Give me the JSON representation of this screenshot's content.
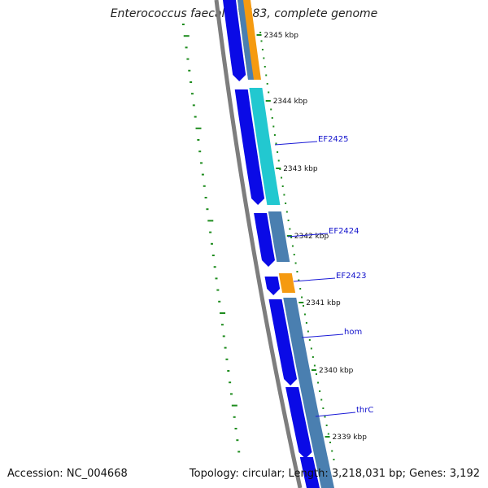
{
  "title": "Enterococcus faecalis V583, complete genome",
  "footer": {
    "accession": "Accession: NC_004668",
    "summary": "Topology: circular; Length: 3,218,031 bp; Genes: 3,192"
  },
  "colors": {
    "backbone": "#7d7d7d",
    "cds_forward": "#0a0ae6",
    "cds_reverse": "#4a7fb0",
    "highlight_orange": "#f59a10",
    "highlight_cyan": "#22c8d0",
    "gc_skew_ticks": "#1e8c1e",
    "label_line": "#1a1ad6",
    "label_text": "#1111cc"
  },
  "scale_labels": [
    "2345 kbp",
    "2344 kbp",
    "2343 kbp",
    "2342 kbp",
    "2341 kbp",
    "2340 kbp",
    "2339 kbp"
  ],
  "gene_labels": [
    "EF2425",
    "EF2424",
    "EF2423",
    "hom",
    "thrC"
  ]
}
